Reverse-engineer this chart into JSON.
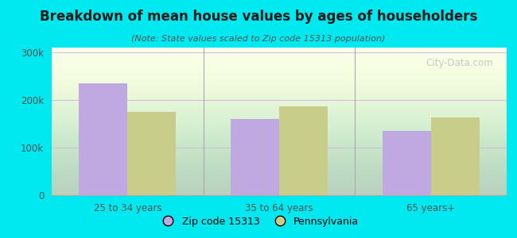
{
  "title": "Breakdown of mean house values by ages of householders",
  "subtitle": "(Note: State values scaled to Zip code 15313 population)",
  "categories": [
    "25 to 34 years",
    "35 to 64 years",
    "65 years+"
  ],
  "zip_values": [
    235000,
    160000,
    135000
  ],
  "state_values": [
    175000,
    187000,
    163000
  ],
  "zip_color": "#c0a8e0",
  "state_color": "#c8ce8a",
  "background_color": "#00e8f0",
  "plot_bg_top": "#e8f5e0",
  "plot_bg_bottom": "#f8fff0",
  "ylim": [
    0,
    310000
  ],
  "yticks": [
    0,
    100000,
    200000,
    300000
  ],
  "ytick_labels": [
    "0",
    "100k",
    "200k",
    "300k"
  ],
  "legend_zip": "Zip code 15313",
  "legend_state": "Pennsylvania",
  "bar_width": 0.32,
  "watermark": "City-Data.com"
}
